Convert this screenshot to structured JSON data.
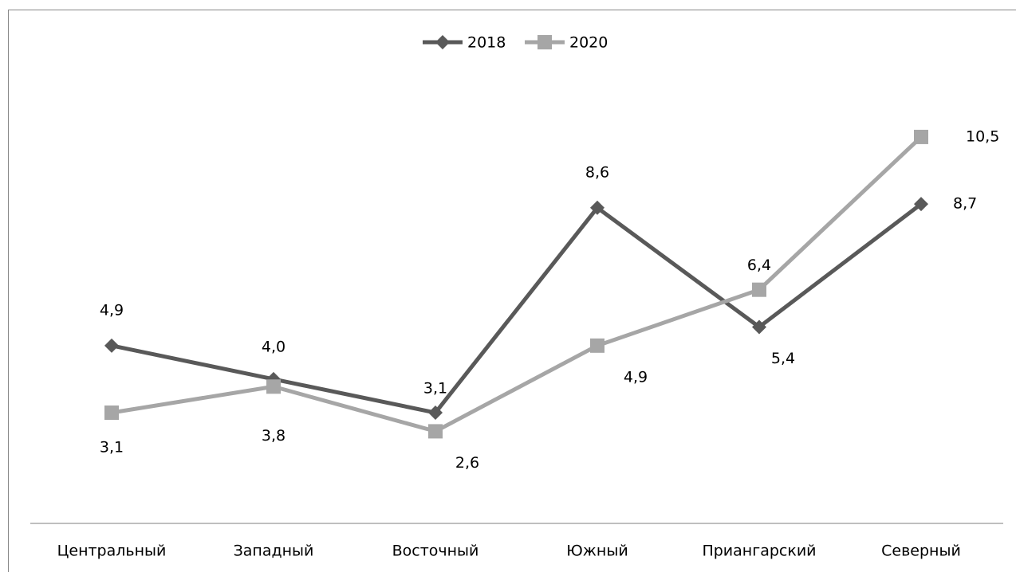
{
  "chart_data": {
    "type": "line",
    "categories": [
      "Центральный",
      "Западный",
      "Восточный",
      "Южный",
      "Приангарский",
      "Северный"
    ],
    "series": [
      {
        "name": "2018",
        "color": "#595959",
        "values": [
          4.9,
          4.0,
          3.1,
          8.6,
          5.4,
          8.7
        ],
        "value_labels": [
          "4,9",
          "4,0",
          "3,1",
          "8,6",
          "5,4",
          "8,7"
        ]
      },
      {
        "name": "2020",
        "color": "#a6a6a6",
        "values": [
          3.1,
          3.8,
          2.6,
          4.9,
          6.4,
          10.5
        ],
        "value_labels": [
          "3,1",
          "3,8",
          "2,6",
          "4,9",
          "6,4",
          "10,5"
        ]
      }
    ],
    "ylim": [
      0,
      13
    ],
    "legend": "top"
  }
}
